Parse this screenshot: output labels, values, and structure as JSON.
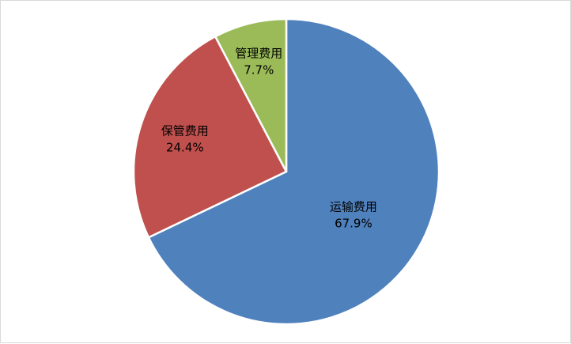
{
  "chart_data": {
    "type": "pie",
    "categories": [
      "运输费用",
      "保管费用",
      "管理费用"
    ],
    "values": [
      67.9,
      24.4,
      7.7
    ],
    "data_labels": [
      "67.9%",
      "24.4%",
      "7.7%"
    ],
    "colors": [
      "#4f81bd",
      "#c0504d",
      "#9bbb59"
    ],
    "legend": "none"
  }
}
